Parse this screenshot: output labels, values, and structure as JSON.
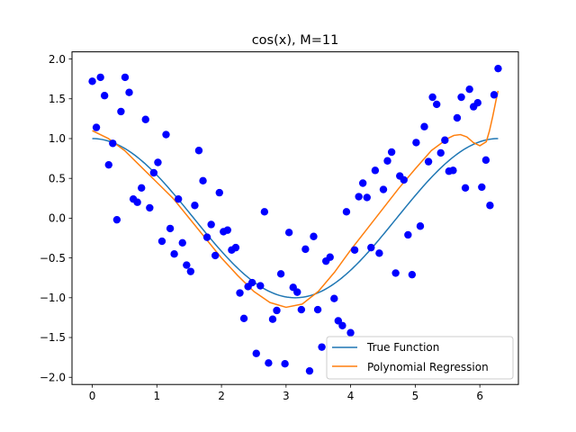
{
  "chart_data": {
    "type": "scatter",
    "title": "cos(x), M=11",
    "xlabel": "",
    "ylabel": "",
    "xlim": [
      -0.314,
      6.597
    ],
    "ylim": [
      -2.09,
      2.09
    ],
    "xticks": [
      0,
      1,
      2,
      3,
      4,
      5,
      6
    ],
    "yticks": [
      -2.0,
      -1.5,
      -1.0,
      -0.5,
      0.0,
      0.5,
      1.0,
      1.5,
      2.0
    ],
    "xtick_labels": [
      "0",
      "1",
      "2",
      "3",
      "4",
      "5",
      "6"
    ],
    "ytick_labels": [
      "−2.0",
      "−1.5",
      "−1.0",
      "−0.5",
      "0.0",
      "0.5",
      "1.0",
      "1.5",
      "2.0"
    ],
    "grid": false,
    "legend_position": "lower-right",
    "colors": {
      "points": "#0000ff",
      "true_function": "#1f77b4",
      "regression": "#ff7f0e"
    },
    "points": {
      "x": [
        0.0,
        0.063,
        0.127,
        0.19,
        0.254,
        0.317,
        0.381,
        0.444,
        0.508,
        0.571,
        0.635,
        0.698,
        0.762,
        0.825,
        0.889,
        0.952,
        1.016,
        1.079,
        1.142,
        1.206,
        1.269,
        1.333,
        1.396,
        1.46,
        1.523,
        1.587,
        1.65,
        1.714,
        1.777,
        1.841,
        1.904,
        1.968,
        2.031,
        2.094,
        2.158,
        2.221,
        2.285,
        2.348,
        2.412,
        2.475,
        2.539,
        2.602,
        2.666,
        2.729,
        2.793,
        2.856,
        2.92,
        2.983,
        3.046,
        3.11,
        3.173,
        3.237,
        3.3,
        3.364,
        3.427,
        3.491,
        3.554,
        3.618,
        3.681,
        3.745,
        3.808,
        3.872,
        3.935,
        3.999,
        4.062,
        4.126,
        4.189,
        4.253,
        4.316,
        4.38,
        4.443,
        4.507,
        4.57,
        4.634,
        4.697,
        4.761,
        4.824,
        4.888,
        4.951,
        5.014,
        5.078,
        5.141,
        5.205,
        5.268,
        5.332,
        5.395,
        5.459,
        5.522,
        5.586,
        5.649,
        5.713,
        5.776,
        5.84,
        5.903,
        5.967,
        6.03,
        6.094,
        6.157,
        6.221,
        6.283
      ],
      "y": [
        1.72,
        1.14,
        1.77,
        1.54,
        0.67,
        0.94,
        -0.02,
        1.34,
        1.77,
        1.58,
        0.24,
        0.2,
        0.38,
        1.24,
        0.13,
        0.57,
        0.7,
        -0.29,
        1.05,
        -0.13,
        -0.45,
        0.24,
        -0.31,
        -0.59,
        -0.67,
        0.16,
        0.85,
        0.47,
        -0.24,
        -0.08,
        -0.47,
        0.32,
        -0.17,
        -0.15,
        -0.4,
        -0.37,
        -0.94,
        -1.26,
        -0.86,
        -0.81,
        -1.7,
        -0.85,
        0.08,
        -1.82,
        -1.27,
        -1.16,
        -0.7,
        -1.83,
        -0.18,
        -0.87,
        -0.93,
        -1.15,
        -0.39,
        -1.92,
        -0.23,
        -1.15,
        -1.62,
        -0.54,
        -0.49,
        -1.01,
        -1.29,
        -1.35,
        0.08,
        -1.44,
        -0.4,
        0.27,
        0.44,
        0.26,
        -0.37,
        0.6,
        -0.44,
        0.36,
        0.72,
        0.83,
        -0.69,
        0.53,
        0.48,
        -0.21,
        -0.71,
        0.95,
        -0.1,
        1.15,
        0.71,
        1.52,
        1.43,
        0.82,
        0.98,
        0.59,
        0.6,
        1.26,
        1.52,
        0.38,
        1.62,
        1.4,
        1.45,
        0.39,
        0.73,
        0.16,
        1.55,
        1.88
      ]
    },
    "series": [
      {
        "name": "True Function",
        "function": "cos(x)",
        "x_range": [
          0,
          6.283
        ]
      },
      {
        "name": "Polynomial Regression",
        "x": [
          0.0,
          0.25,
          0.5,
          0.75,
          1.0,
          1.25,
          1.5,
          1.75,
          2.0,
          2.25,
          2.5,
          2.75,
          3.0,
          3.25,
          3.5,
          3.75,
          4.0,
          4.25,
          4.5,
          4.75,
          5.0,
          5.25,
          5.5,
          5.6,
          5.7,
          5.8,
          5.9,
          6.0,
          6.1,
          6.15,
          6.2,
          6.25,
          6.283
        ],
        "y": [
          1.1,
          1.0,
          0.85,
          0.65,
          0.45,
          0.25,
          0.0,
          -0.25,
          -0.5,
          -0.72,
          -0.92,
          -1.06,
          -1.12,
          -1.08,
          -0.92,
          -0.68,
          -0.4,
          -0.14,
          0.12,
          0.38,
          0.62,
          0.85,
          1.0,
          1.04,
          1.05,
          1.02,
          0.95,
          0.91,
          0.96,
          1.1,
          1.28,
          1.48,
          1.6
        ]
      }
    ]
  }
}
